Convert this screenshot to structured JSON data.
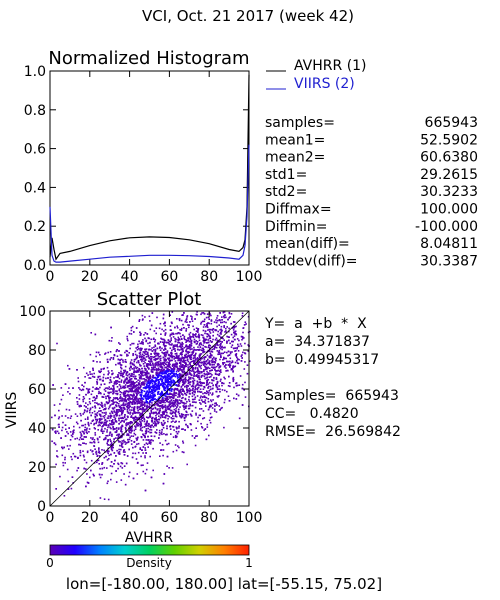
{
  "title": "VCI,  Oct. 21 2017 (week 42)",
  "histogram": {
    "title": "Normalized Histogram",
    "legend": [
      {
        "label": "AVHRR (1)",
        "color": "#000000"
      },
      {
        "label": "VIIRS (2)",
        "color": "#1f1fd0"
      }
    ]
  },
  "stats": [
    {
      "label": "samples=",
      "value": "665943"
    },
    {
      "label": "mean1=",
      "value": "52.5902"
    },
    {
      "label": "mean2=",
      "value": "60.6380"
    },
    {
      "label": "std1=",
      "value": "29.2615"
    },
    {
      "label": "std2=",
      "value": "30.3233"
    },
    {
      "label": "Diffmax=",
      "value": "100.000"
    },
    {
      "label": "Diffmin=",
      "value": "-100.000"
    },
    {
      "label": "mean(diff)=",
      "value": "8.04811"
    },
    {
      "label": "stddev(diff)=",
      "value": "30.3387"
    }
  ],
  "scatter": {
    "title": "Scatter Plot",
    "xlabel": "AVHRR",
    "ylabel": "VIIRS",
    "regression_lines": [
      "Y=  a  +b  *  X",
      "a=  34.371837",
      "b=  0.49945317"
    ],
    "summary_lines": [
      "Samples=  665943",
      "CC=   0.4820",
      "RMSE=  26.569842"
    ]
  },
  "colorbar": {
    "label": "Density",
    "min_label": "0",
    "max_label": "1",
    "colors": [
      "#5a00b4",
      "#2000ff",
      "#0080ff",
      "#00d0d0",
      "#00d060",
      "#60d000",
      "#d0d000",
      "#ff8000",
      "#ff2000"
    ]
  },
  "footer": "lon=[-180.00, 180.00] lat=[-55.15, 75.02]",
  "chart_data": [
    {
      "type": "line",
      "title": "Normalized Histogram",
      "xlim": [
        0,
        100
      ],
      "ylim": [
        0,
        1
      ],
      "xticks": [
        0,
        20,
        40,
        60,
        80,
        100
      ],
      "yticks": [
        "0.0",
        "0.2",
        "0.4",
        "0.6",
        "0.8",
        "1.0"
      ],
      "series": [
        {
          "name": "AVHRR (1)",
          "color": "#000000",
          "x": [
            0,
            1,
            2,
            3,
            5,
            10,
            20,
            30,
            40,
            50,
            60,
            70,
            80,
            90,
            95,
            97,
            98,
            99,
            100
          ],
          "y": [
            0.04,
            0.14,
            0.08,
            0.03,
            0.06,
            0.07,
            0.1,
            0.125,
            0.14,
            0.145,
            0.142,
            0.13,
            0.11,
            0.08,
            0.07,
            0.09,
            0.13,
            0.3,
            0.98
          ]
        },
        {
          "name": "VIIRS (2)",
          "color": "#1f1fd0",
          "x": [
            0,
            1,
            2,
            3,
            5,
            10,
            20,
            30,
            40,
            50,
            60,
            70,
            80,
            90,
            95,
            97,
            98,
            99,
            100
          ],
          "y": [
            0.3,
            0.05,
            0.02,
            0.015,
            0.015,
            0.02,
            0.03,
            0.04,
            0.045,
            0.05,
            0.05,
            0.048,
            0.044,
            0.036,
            0.03,
            0.05,
            0.1,
            0.25,
            0.62
          ]
        }
      ]
    },
    {
      "type": "scatter",
      "title": "Scatter Plot",
      "xlabel": "AVHRR",
      "ylabel": "VIIRS",
      "xlim": [
        0,
        100
      ],
      "ylim": [
        0,
        100
      ],
      "xticks": [
        0,
        20,
        40,
        60,
        80,
        100
      ],
      "yticks": [
        0,
        20,
        40,
        60,
        80,
        100
      ],
      "samples": 665943,
      "regression": {
        "a": 34.371837,
        "b": 0.49945317
      },
      "cc": 0.482,
      "rmse": 26.569842,
      "center": [
        55,
        62
      ],
      "spread": [
        22,
        15
      ]
    }
  ]
}
